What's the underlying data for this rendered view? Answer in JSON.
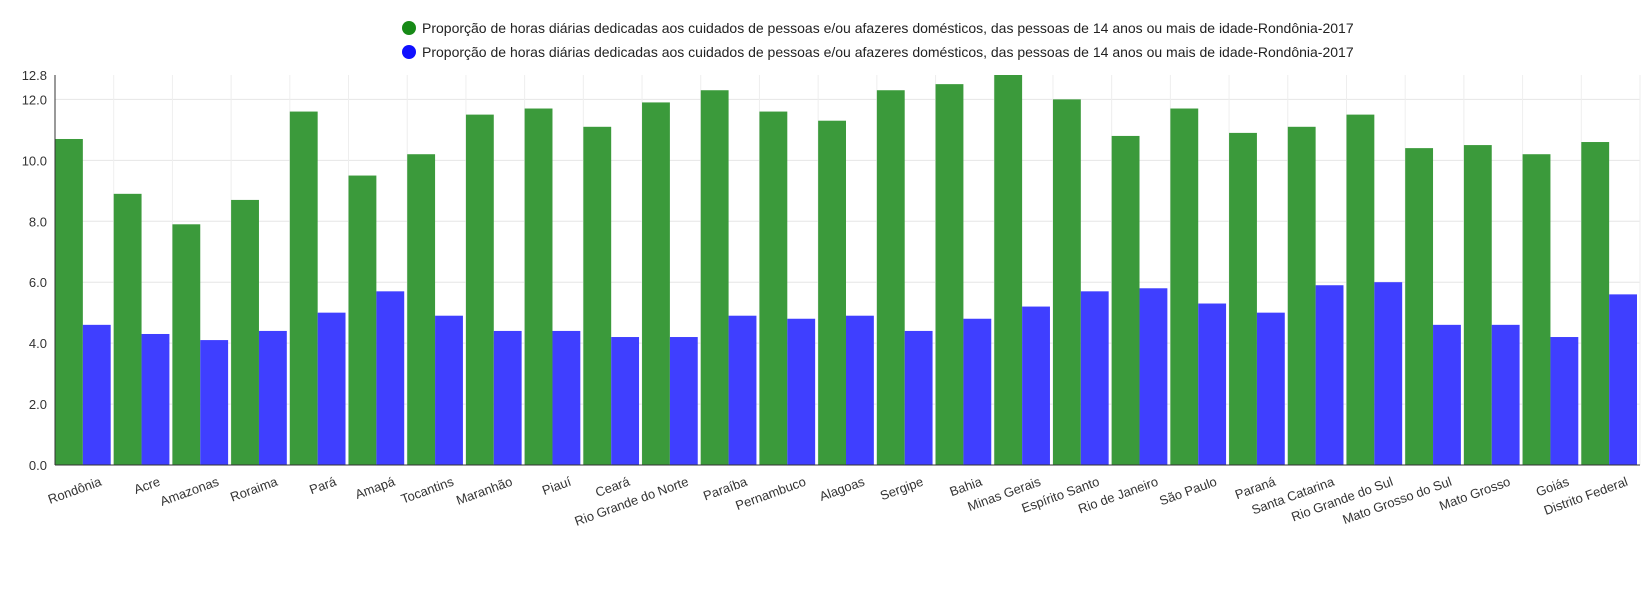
{
  "chart_data": {
    "type": "bar",
    "title": "",
    "xlabel": "",
    "ylabel": "",
    "ylim": [
      0,
      12.8
    ],
    "yticks": [
      "0.0",
      "2.0",
      "4.0",
      "6.0",
      "8.0",
      "10.0",
      "12.0",
      "12.8"
    ],
    "ytick_values": [
      0,
      2,
      4,
      6,
      8,
      10,
      12,
      12.8
    ],
    "grid": true,
    "legend_position": "top",
    "categories": [
      "Rondônia",
      "Acre",
      "Amazonas",
      "Roraima",
      "Pará",
      "Amapá",
      "Tocantins",
      "Maranhão",
      "Piauí",
      "Ceará",
      "Rio Grande do Norte",
      "Paraíba",
      "Pernambuco",
      "Alagoas",
      "Sergipe",
      "Bahia",
      "Minas Gerais",
      "Espírito Santo",
      "Rio de Janeiro",
      "São Paulo",
      "Paraná",
      "Santa Catarina",
      "Rio Grande do Sul",
      "Mato Grosso do Sul",
      "Mato Grosso",
      "Goiás",
      "Distrito Federal"
    ],
    "series": [
      {
        "name": "Proporção de horas diárias dedicadas aos cuidados de pessoas e/ou afazeres domésticos, das pessoas de 14 anos ou mais de idade-Rondônia-2017",
        "color": "#3b9a3b",
        "values": [
          10.7,
          8.9,
          7.9,
          8.7,
          11.6,
          9.5,
          10.2,
          11.5,
          11.7,
          11.1,
          11.9,
          12.3,
          11.6,
          11.3,
          12.3,
          12.5,
          12.8,
          12.0,
          10.8,
          11.7,
          10.9,
          11.1,
          11.5,
          10.4,
          10.5,
          10.2,
          10.6
        ]
      },
      {
        "name": "Proporção de horas diárias dedicadas aos cuidados de pessoas e/ou afazeres domésticos, das pessoas de 14 anos ou mais de idade-Rondônia-2017",
        "color": "#3f3fff",
        "values": [
          4.6,
          4.3,
          4.1,
          4.4,
          5.0,
          5.7,
          4.9,
          4.4,
          4.4,
          4.2,
          4.2,
          4.9,
          4.8,
          4.9,
          4.4,
          4.8,
          5.2,
          5.7,
          5.8,
          5.3,
          5.0,
          5.9,
          6.0,
          4.6,
          4.6,
          4.2,
          5.6
        ]
      }
    ]
  }
}
